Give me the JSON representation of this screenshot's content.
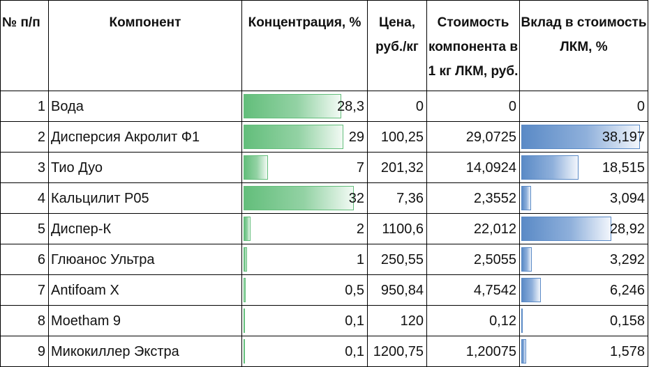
{
  "headers": {
    "num": "№ п/п",
    "component": "Компонент",
    "concentration": "Концентрация, %",
    "price": "Цена, руб./кг",
    "cost": "Стоимость компонента в 1 кг ЛКМ, руб.",
    "contribution": "Вклад в стоимость ЛКМ, %"
  },
  "rows": [
    {
      "n": "1",
      "name": "Вода",
      "conc": "28,3",
      "conc_frac": 0.884,
      "price": "0",
      "cost": "0",
      "contrib": "0",
      "contrib_frac": 0.0
    },
    {
      "n": "2",
      "name": "Дисперсия Акролит Ф1",
      "conc": "29",
      "conc_frac": 0.906,
      "price": "100,25",
      "cost": "29,0725",
      "contrib": "38,197",
      "contrib_frac": 1.0
    },
    {
      "n": "3",
      "name": "Тио Дуо",
      "conc": "7",
      "conc_frac": 0.219,
      "price": "201,32",
      "cost": "14,0924",
      "contrib": "18,515",
      "contrib_frac": 0.485
    },
    {
      "n": "4",
      "name": "Кальцилит Р05",
      "conc": "32",
      "conc_frac": 1.0,
      "price": "7,36",
      "cost": "2,3552",
      "contrib": "3,094",
      "contrib_frac": 0.081
    },
    {
      "n": "5",
      "name": "Диспер-К",
      "conc": "2",
      "conc_frac": 0.0625,
      "price": "1100,6",
      "cost": "22,012",
      "contrib": "28,92",
      "contrib_frac": 0.757
    },
    {
      "n": "6",
      "name": "Глюанос Ультра",
      "conc": "1",
      "conc_frac": 0.031,
      "price": "250,55",
      "cost": "2,5055",
      "contrib": "3,292",
      "contrib_frac": 0.086
    },
    {
      "n": "7",
      "name": "Antifoam X",
      "conc": "0,5",
      "conc_frac": 0.016,
      "price": "950,84",
      "cost": "4,7542",
      "contrib": "6,246",
      "contrib_frac": 0.164
    },
    {
      "n": "8",
      "name": "Moetham 9",
      "conc": "0,1",
      "conc_frac": 0.003,
      "price": "120",
      "cost": "0,12",
      "contrib": "0,158",
      "contrib_frac": 0.004
    },
    {
      "n": "9",
      "name": "Микокиллер Экстра",
      "conc": "0,1",
      "conc_frac": 0.003,
      "price": "1200,75",
      "cost": "1,20075",
      "contrib": "1,578",
      "contrib_frac": 0.041
    }
  ],
  "colors": {
    "concentration_bar": "#63be7b",
    "contribution_bar": "#5a8ac6"
  }
}
